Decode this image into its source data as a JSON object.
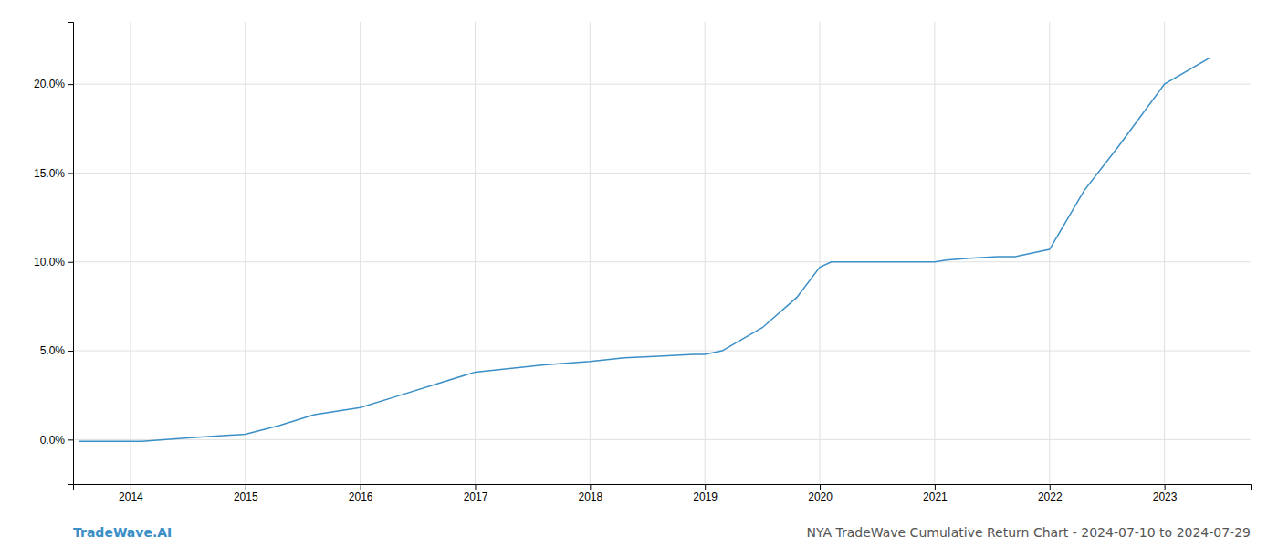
{
  "chart_data": {
    "type": "line",
    "title": "NYA TradeWave Cumulative Return Chart - 2024-07-10 to 2024-07-29",
    "annotations": [
      "TradeWave.AI"
    ],
    "x": [
      2013.55,
      2014.0,
      2014.1,
      2014.5,
      2015.0,
      2015.3,
      2015.6,
      2016.0,
      2016.3,
      2016.7,
      2017.0,
      2017.3,
      2017.6,
      2018.0,
      2018.3,
      2018.6,
      2018.9,
      2019.0,
      2019.15,
      2019.5,
      2019.8,
      2020.0,
      2020.1,
      2020.5,
      2020.7,
      2021.0,
      2021.1,
      2021.3,
      2021.55,
      2021.7,
      2022.0,
      2022.3,
      2022.6,
      2023.0,
      2023.4
    ],
    "values": [
      -0.001,
      -0.001,
      -0.001,
      0.001,
      0.003,
      0.008,
      0.014,
      0.018,
      0.024,
      0.032,
      0.038,
      0.04,
      0.042,
      0.044,
      0.046,
      0.047,
      0.048,
      0.048,
      0.05,
      0.063,
      0.08,
      0.097,
      0.1,
      0.1,
      0.1,
      0.1,
      0.101,
      0.102,
      0.103,
      0.103,
      0.107,
      0.14,
      0.165,
      0.2,
      0.215
    ],
    "color": "#3a8fc7",
    "xlim": [
      2013.5,
      2023.75
    ],
    "ylim": [
      -0.025,
      0.235
    ],
    "xticks": [
      2014,
      2015,
      2016,
      2017,
      2018,
      2019,
      2020,
      2021,
      2022,
      2023
    ],
    "yticks": [
      {
        "value": 0.0,
        "label": "0.0%"
      },
      {
        "value": 0.05,
        "label": "5.0%"
      },
      {
        "value": 0.1,
        "label": "10.0%"
      },
      {
        "value": 0.15,
        "label": "15.0%"
      },
      {
        "value": 0.2,
        "label": "20.0%"
      }
    ],
    "grid": true
  }
}
